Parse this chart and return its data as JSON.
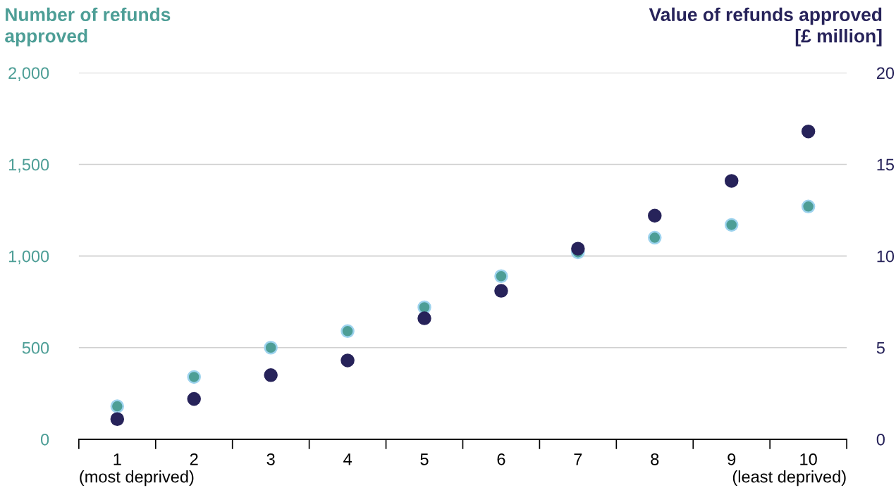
{
  "chart_data": {
    "type": "scatter",
    "ylabel": "Number of refunds\napproved",
    "y2label": "Value of refunds approved\n[£ million]",
    "categories": [
      "1",
      "2",
      "3",
      "4",
      "5",
      "6",
      "7",
      "8",
      "9",
      "10"
    ],
    "series": [
      {
        "color": "#4d9e96",
        "values": [
          180,
          340,
          500,
          590,
          720,
          890,
          1020,
          1100,
          1170,
          1270
        ]
      },
      {
        "color": "#27235a",
        "axis": "y2",
        "values": [
          1.1,
          2.2,
          3.5,
          4.3,
          6.6,
          8.1,
          10.4,
          12.2,
          14.1,
          16.8
        ]
      }
    ],
    "ylim": [
      0,
      2000
    ],
    "yticks": [
      0,
      {
        "value": 500,
        "label": "500"
      },
      {
        "value": 1000,
        "label": "1,000"
      },
      {
        "value": 1500,
        "label": "1,500"
      },
      {
        "value": 2000,
        "label": "2,000"
      }
    ],
    "y2lim": [
      0,
      20
    ],
    "y2ticks": [
      0,
      5,
      10,
      15,
      20
    ],
    "grid": "y",
    "marker": "circle",
    "annotations": [
      "(most deprived)",
      "(least deprived)"
    ]
  }
}
